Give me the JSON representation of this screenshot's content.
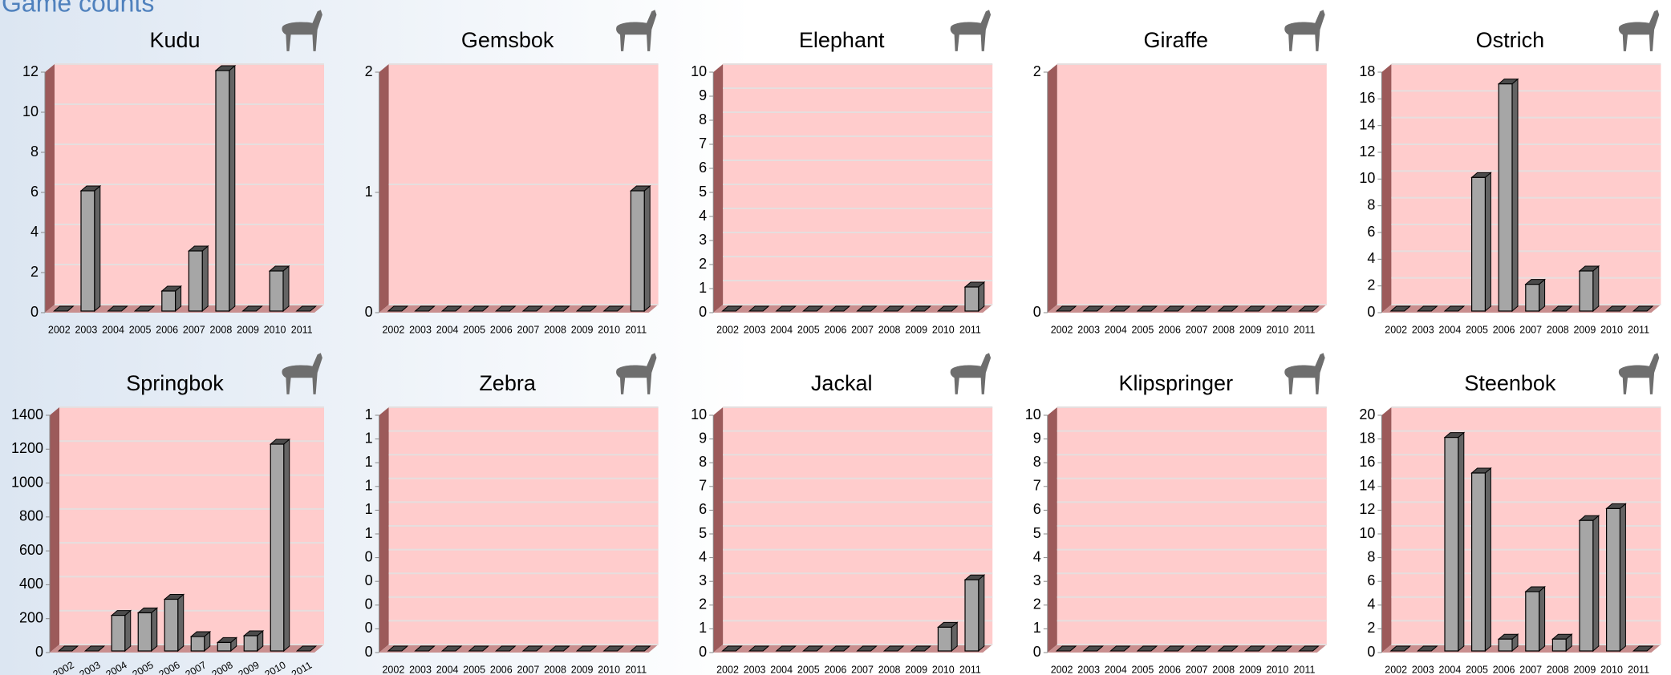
{
  "page_title": "Game counts",
  "chart_data": [
    {
      "type": "bar",
      "title": "Kudu",
      "categories": [
        "2002",
        "2003",
        "2004",
        "2005",
        "2006",
        "2007",
        "2008",
        "2009",
        "2010",
        "2011"
      ],
      "values": [
        0,
        6,
        0,
        0,
        1,
        3,
        12,
        0,
        2,
        0
      ],
      "color": "#a6a6a6",
      "ylim": [
        0,
        12
      ],
      "yticks": [
        0,
        2,
        4,
        6,
        8,
        10,
        12
      ],
      "grid": true
    },
    {
      "type": "bar",
      "title": "Gemsbok",
      "categories": [
        "2002",
        "2003",
        "2004",
        "2005",
        "2006",
        "2007",
        "2008",
        "2009",
        "2010",
        "2011"
      ],
      "values": [
        0,
        0,
        0,
        0,
        0,
        0,
        0,
        0,
        0,
        1
      ],
      "color": "#a6a6a6",
      "ylim": [
        0,
        2
      ],
      "yticks": [
        0,
        1,
        2
      ],
      "grid": true
    },
    {
      "type": "bar",
      "title": "Elephant",
      "categories": [
        "2002",
        "2003",
        "2004",
        "2005",
        "2006",
        "2007",
        "2008",
        "2009",
        "2010",
        "2011"
      ],
      "values": [
        0,
        0,
        0,
        0,
        0,
        0,
        0,
        0,
        0,
        1
      ],
      "color": "#a6a6a6",
      "ylim": [
        0,
        10
      ],
      "yticks": [
        0,
        1,
        2,
        3,
        4,
        5,
        6,
        7,
        8,
        9,
        10
      ],
      "grid": true
    },
    {
      "type": "bar",
      "title": "Giraffe",
      "categories": [
        "2002",
        "2003",
        "2004",
        "2005",
        "2006",
        "2007",
        "2008",
        "2009",
        "2010",
        "2011"
      ],
      "values": [
        0,
        0,
        0,
        0,
        0,
        0,
        0,
        0,
        0,
        0
      ],
      "color": "#a6a6a6",
      "ylim": [
        0,
        2
      ],
      "yticks": [
        0,
        2
      ],
      "grid": true
    },
    {
      "type": "bar",
      "title": "Ostrich",
      "categories": [
        "2002",
        "2003",
        "2004",
        "2005",
        "2006",
        "2007",
        "2008",
        "2009",
        "2010",
        "2011"
      ],
      "values": [
        0,
        0,
        0,
        10,
        17,
        2,
        0,
        3,
        0,
        0
      ],
      "color": "#a6a6a6",
      "ylim": [
        0,
        18
      ],
      "yticks": [
        0,
        2,
        4,
        6,
        8,
        10,
        12,
        14,
        16,
        18
      ],
      "grid": true
    },
    {
      "type": "bar",
      "title": "Springbok",
      "categories": [
        "2002",
        "2003",
        "2004",
        "2005",
        "2006",
        "2007",
        "2008",
        "2009",
        "2010",
        "2011"
      ],
      "values": [
        0,
        0,
        210,
        225,
        305,
        85,
        50,
        90,
        1220,
        0
      ],
      "color": "#a6a6a6",
      "ylim": [
        0,
        1400
      ],
      "yticks": [
        0,
        200,
        400,
        600,
        800,
        1000,
        1200,
        1400
      ],
      "grid": true,
      "xtick_rotation": -30
    },
    {
      "type": "bar",
      "title": "Zebra",
      "categories": [
        "2002",
        "2003",
        "2004",
        "2005",
        "2006",
        "2007",
        "2008",
        "2009",
        "2010",
        "2011"
      ],
      "values": [
        0,
        0,
        0,
        0,
        0,
        0,
        0,
        0,
        0,
        0
      ],
      "color": "#a6a6a6",
      "ylim": [
        0,
        1
      ],
      "yticks": [
        {
          "value": 0,
          "label": "0"
        },
        {
          "value": 0.1,
          "label": "0"
        },
        {
          "value": 0.2,
          "label": "0"
        },
        {
          "value": 0.3,
          "label": "0"
        },
        {
          "value": 0.4,
          "label": "0"
        },
        {
          "value": 0.5,
          "label": "1"
        },
        {
          "value": 0.6,
          "label": "1"
        },
        {
          "value": 0.7,
          "label": "1"
        },
        {
          "value": 0.8,
          "label": "1"
        },
        {
          "value": 0.9,
          "label": "1"
        },
        {
          "value": 1,
          "label": "1"
        }
      ],
      "grid": true
    },
    {
      "type": "bar",
      "title": "Jackal",
      "categories": [
        "2002",
        "2003",
        "2004",
        "2005",
        "2006",
        "2007",
        "2008",
        "2009",
        "2010",
        "2011"
      ],
      "values": [
        0,
        0,
        0,
        0,
        0,
        0,
        0,
        0,
        1,
        3
      ],
      "color": "#a6a6a6",
      "ylim": [
        0,
        10
      ],
      "yticks": [
        0,
        1,
        2,
        3,
        4,
        5,
        6,
        7,
        8,
        9,
        10
      ],
      "grid": true
    },
    {
      "type": "bar",
      "title": "Klipspringer",
      "categories": [
        "2002",
        "2003",
        "2004",
        "2005",
        "2006",
        "2007",
        "2008",
        "2009",
        "2010",
        "2011"
      ],
      "values": [
        0,
        0,
        0,
        0,
        0,
        0,
        0,
        0,
        0,
        0
      ],
      "color": "#a6a6a6",
      "ylim": [
        0,
        10
      ],
      "yticks": [
        0,
        1,
        2,
        3,
        4,
        5,
        6,
        7,
        8,
        9,
        10
      ],
      "grid": true
    },
    {
      "type": "bar",
      "title": "Steenbok",
      "categories": [
        "2002",
        "2003",
        "2004",
        "2005",
        "2006",
        "2007",
        "2008",
        "2009",
        "2010",
        "2011"
      ],
      "values": [
        0,
        0,
        18,
        15,
        1,
        5,
        1,
        11,
        12,
        0
      ],
      "color": "#a6a6a6",
      "ylim": [
        0,
        20
      ],
      "yticks": [
        0,
        2,
        4,
        6,
        8,
        10,
        12,
        14,
        16,
        18,
        20
      ],
      "grid": true
    }
  ]
}
